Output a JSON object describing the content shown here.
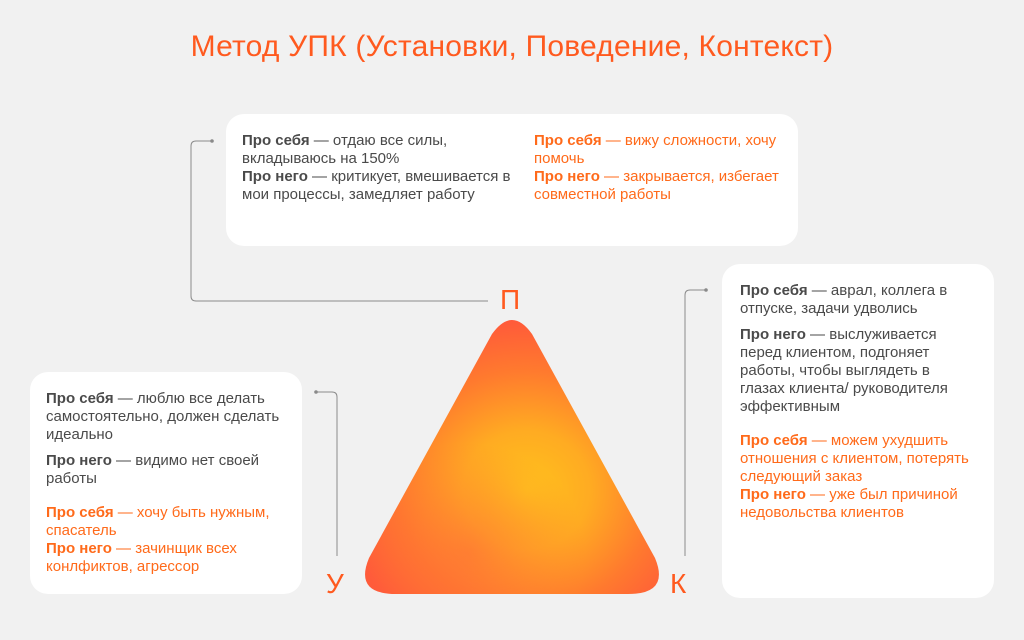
{
  "title": "Метод УПК (Установки, Поведение, Контекст)",
  "letters": {
    "p": "П",
    "u": "У",
    "k": "К"
  },
  "card_p": {
    "left": [
      {
        "head": "Про себя",
        "text": " — отдаю все силы, вкладываюсь на 150%"
      },
      {
        "head": "Про него",
        "text": " — критикует, вмешивается в мои процессы, замедляет работу"
      }
    ],
    "right": [
      {
        "head": "Про себя",
        "text": " — вижу сложности, хочу помочь"
      },
      {
        "head": "Про него",
        "text": " — закрывается, избегает совместной работы"
      }
    ]
  },
  "card_u": {
    "gray": [
      {
        "head": "Про себя",
        "text": " — люблю все делать самостоятельно, должен сделать идеально"
      },
      {
        "head": "Про него",
        "text": " — видимо нет своей работы"
      }
    ],
    "orange": [
      {
        "head": "Про себя",
        "text": " — хочу быть нужным, спасатель"
      },
      {
        "head": "Про него",
        "text": " — зачинщик всех конлфиктов, агрессор"
      }
    ]
  },
  "card_k": {
    "gray": [
      {
        "head": "Про себя",
        "text": " — аврал, коллега в отпуске, задачи удволись"
      },
      {
        "head": "Про него",
        "text": " — выслуживается перед клиентом, подгоняет работы, чтобы выглядеть в глазах клиента/ руководителя эффективным"
      }
    ],
    "orange": [
      {
        "head": "Про себя",
        "text": "  — можем ухудшить отношения с клиентом, потерять следующий заказ"
      },
      {
        "head": "Про него",
        "text": " — уже был причиной недовольства клиентов"
      }
    ]
  },
  "colors": {
    "accent": "#ff5a1f",
    "text_gray": "#4a4a4a",
    "background": "#f1f1f1",
    "card": "#ffffff"
  }
}
